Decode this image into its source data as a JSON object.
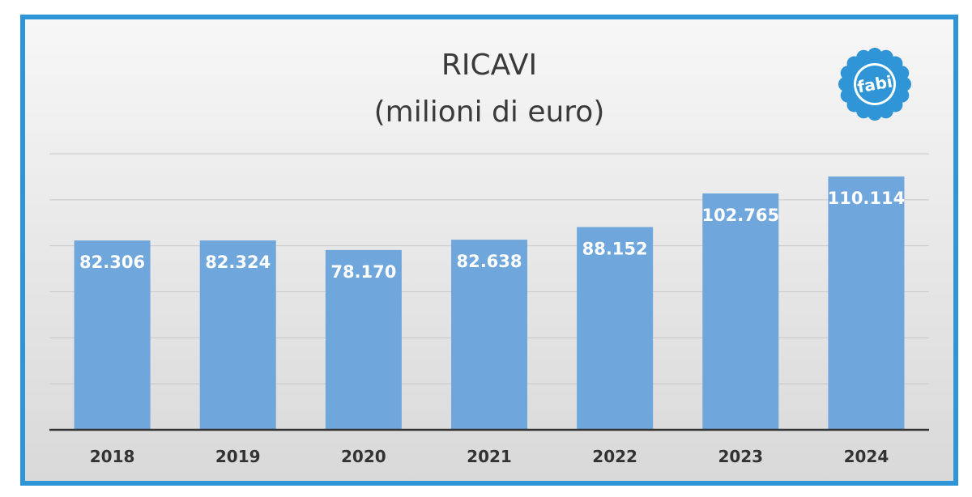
{
  "title_line1": "RICAVI",
  "title_line2": "(milioni di euro)",
  "logo": {
    "text": "fabi",
    "color": "#2f95d6",
    "icon": "flower-logo-icon"
  },
  "colors": {
    "frame": "#2f95d6",
    "bar": "#6fa6db",
    "grid": "#c8c8c8",
    "axis": "#333333"
  },
  "chart_data": {
    "type": "bar",
    "title": "RICAVI (milioni di euro)",
    "categories": [
      "2018",
      "2019",
      "2020",
      "2021",
      "2022",
      "2023",
      "2024"
    ],
    "values": [
      82.306,
      82.324,
      78.17,
      82.638,
      88.152,
      102.765,
      110.114
    ],
    "labels": [
      "82.306",
      "82.324",
      "78.170",
      "82.638",
      "88.152",
      "102.765",
      "110.114"
    ],
    "ylim": [
      0,
      120
    ],
    "grid": true,
    "legend": "none",
    "xlabel": "",
    "ylabel": ""
  }
}
